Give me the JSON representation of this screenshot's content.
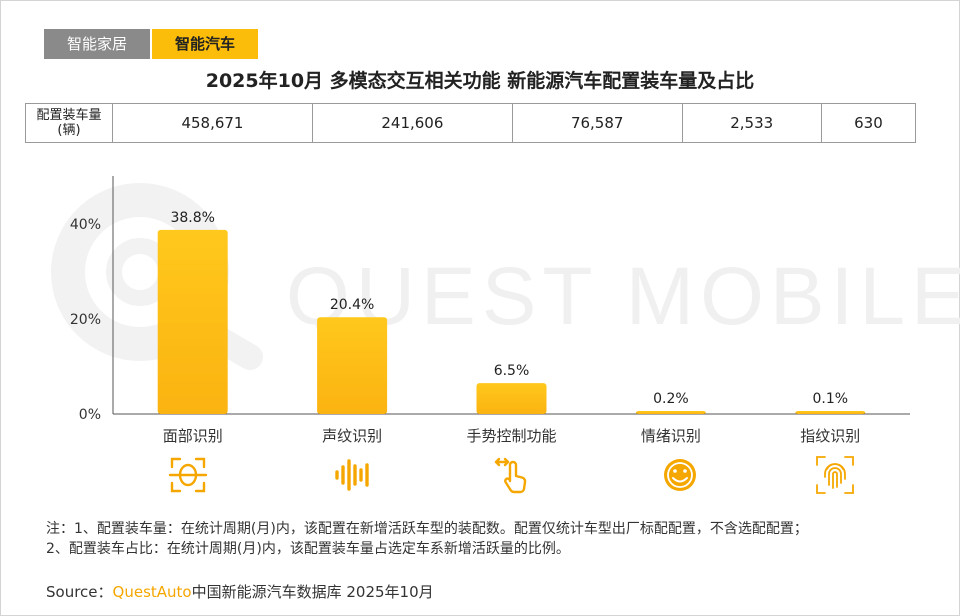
{
  "tabs": [
    {
      "label": "智能家居",
      "active": false
    },
    {
      "label": "智能汽车",
      "active": true
    }
  ],
  "title": "2025年10月 多模态交互相关功能 新能源汽车配置装车量及占比",
  "counts_row": {
    "header_line1": "配置装车量",
    "header_line2": "(辆)",
    "values": [
      "458,671",
      "241,606",
      "76,587",
      "2,533",
      "630"
    ]
  },
  "watermark": "QUEST MOBILE",
  "chart_data": {
    "type": "bar",
    "categories": [
      "面部识别",
      "声纹识别",
      "手势控制功能",
      "情绪识别",
      "指纹识别"
    ],
    "values": [
      38.8,
      20.4,
      6.5,
      0.2,
      0.1
    ],
    "value_labels": [
      "38.8%",
      "20.4%",
      "6.5%",
      "0.2%",
      "0.1%"
    ],
    "yticks": [
      0,
      20,
      40
    ],
    "ytick_labels": [
      "0%",
      "20%",
      "40%"
    ],
    "ylim": [
      0,
      50
    ],
    "bar_color": "#ffc21a",
    "bar_color_dark": "#fbb514",
    "grid": false,
    "legend": "none"
  },
  "category_icons": [
    "face-scan-icon",
    "voice-wave-icon",
    "hand-gesture-icon",
    "emotion-icon",
    "fingerprint-icon"
  ],
  "accent_color": "#f5a700",
  "notes": [
    "注：1、配置装车量：在统计周期(月)内，该配置在新增活跃车型的装配数。配置仅统计车型出厂标配配置，不含选配配置；",
    "2、配置装车占比：在统计周期(月)内，该配置装车量占选定车系新增活跃量的比例。"
  ],
  "source": {
    "prefix": "Source：",
    "brand": "QuestAuto",
    "text": "中国新能源汽车数据库 2025年10月"
  }
}
